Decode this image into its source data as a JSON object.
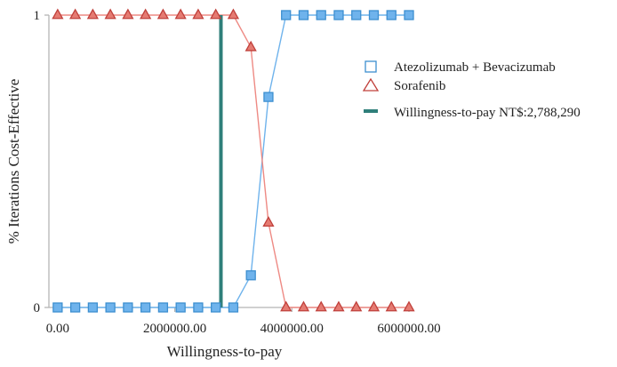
{
  "chart_data": {
    "type": "line",
    "xlabel": "Willingness-to-pay",
    "ylabel": "% Iterations Cost-Effective",
    "xlim": [
      -150000,
      6000000
    ],
    "ylim": [
      0,
      1
    ],
    "x_ticks": [
      0,
      2000000,
      4000000,
      6000000
    ],
    "x_tick_labels": [
      "0.00",
      "2000000.00",
      "4000000.00",
      "6000000.00"
    ],
    "y_ticks": [
      0,
      1
    ],
    "y_tick_labels": [
      "0",
      "1"
    ],
    "grid": false,
    "legend_position": "right",
    "series": [
      {
        "name": "Atezolizumab + Bevacizumab",
        "marker": "square",
        "color": "#3d8fd0",
        "fill": "#6fb3ec",
        "line_color": "#6fb3ec",
        "x": [
          0,
          300000,
          600000,
          900000,
          1200000,
          1500000,
          1800000,
          2100000,
          2400000,
          2700000,
          3000000,
          3300000,
          3600000,
          3900000,
          4200000,
          4500000,
          4800000,
          5100000,
          5400000,
          5700000,
          6000000
        ],
        "values": [
          0,
          0,
          0,
          0,
          0,
          0,
          0,
          0,
          0,
          0,
          0,
          0.11,
          0.72,
          1,
          1,
          1,
          1,
          1,
          1,
          1,
          1
        ]
      },
      {
        "name": "Sorafenib",
        "marker": "triangle",
        "color": "#c0403b",
        "fill": "#e57b72",
        "line_color": "#ee8a84",
        "x": [
          0,
          300000,
          600000,
          900000,
          1200000,
          1500000,
          1800000,
          2100000,
          2400000,
          2700000,
          3000000,
          3300000,
          3600000,
          3900000,
          4200000,
          4500000,
          4800000,
          5100000,
          5400000,
          5700000,
          6000000
        ],
        "values": [
          1,
          1,
          1,
          1,
          1,
          1,
          1,
          1,
          1,
          1,
          1,
          0.89,
          0.29,
          0,
          0,
          0,
          0,
          0,
          0,
          0,
          0
        ]
      }
    ],
    "threshold": {
      "name": "Willingness-to-pay NT$:2,788,290",
      "x": 2788290,
      "color": "#2f7f7a"
    }
  }
}
